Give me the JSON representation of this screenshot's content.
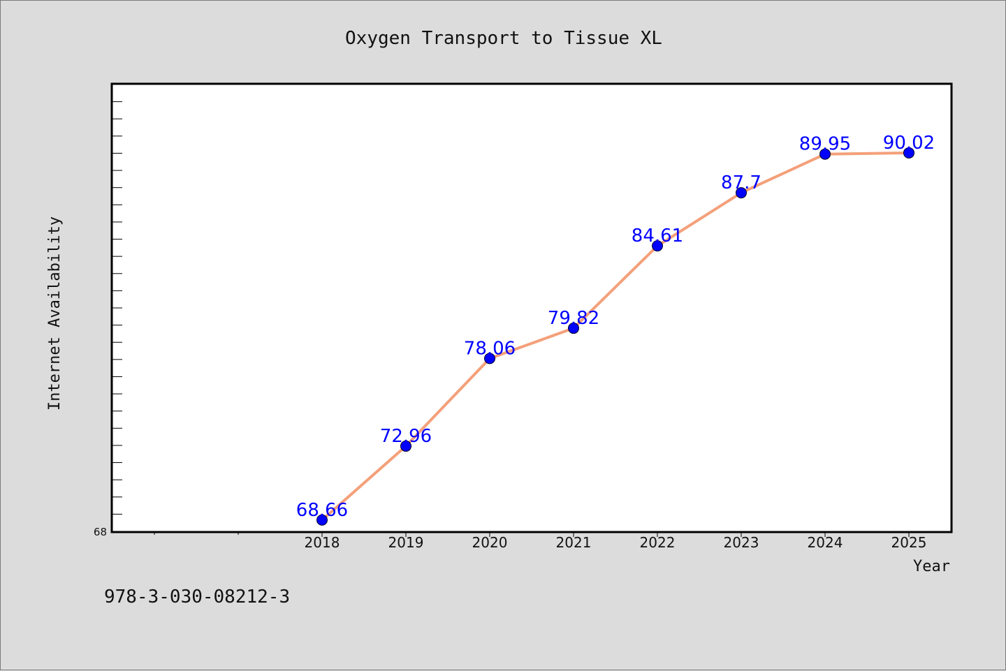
{
  "chart_data": {
    "type": "line",
    "title": "Oxygen Transport to Tissue XL",
    "xlabel": "Year",
    "ylabel": "Internet Availability",
    "categories": [
      "2018",
      "2019",
      "2020",
      "2021",
      "2022",
      "2023",
      "2024",
      "2025"
    ],
    "series": [
      {
        "values": [
          68.66,
          72.96,
          78.06,
          79.82,
          84.61,
          87.7,
          89.95,
          90.02
        ],
        "color": "#f4a07a",
        "marker_color": "#0000ff"
      }
    ],
    "data_labels": [
      "68.66",
      "72.96",
      "78.06",
      "79.82",
      "84.61",
      "87.7",
      "89.95",
      "90.02"
    ],
    "ytick_label": "68",
    "ylim": [
      68,
      94
    ],
    "grid": false,
    "legend": "none"
  },
  "footer": {
    "isbn": "978-3-030-08212-3"
  }
}
